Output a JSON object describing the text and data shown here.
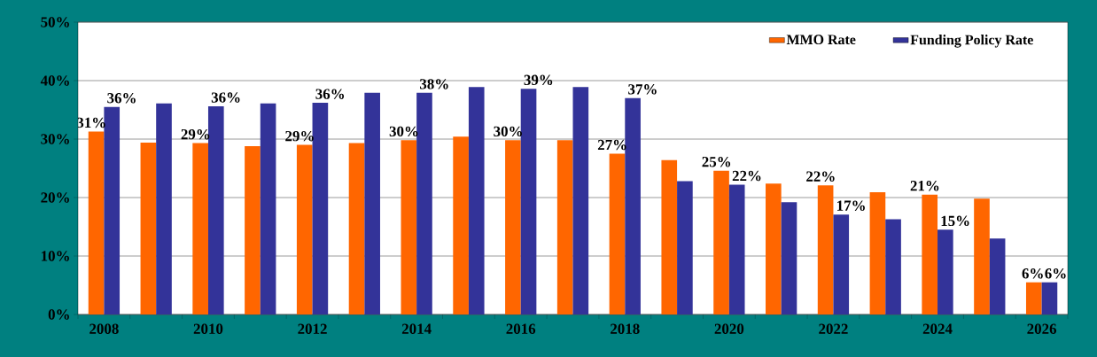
{
  "chart_data": {
    "type": "bar",
    "categories": [
      "2008",
      null,
      "2010",
      null,
      "2012",
      null,
      "2014",
      null,
      "2016",
      null,
      "2018",
      null,
      "2020",
      null,
      "2022",
      null,
      "2024",
      null,
      "2026"
    ],
    "series": [
      {
        "name": "MMO Rate",
        "color": "#ff6600",
        "values": [
          31.3,
          29.4,
          29.3,
          28.8,
          29.0,
          29.3,
          29.8,
          30.4,
          29.8,
          29.8,
          27.5,
          26.4,
          24.6,
          22.4,
          22.1,
          20.9,
          20.5,
          19.8,
          5.5
        ],
        "value_labels": [
          "31%",
          null,
          "29%",
          null,
          "29%",
          null,
          "30%",
          null,
          "30%",
          null,
          "27%",
          null,
          "25%",
          null,
          "22%",
          null,
          "21%",
          null,
          "6%"
        ]
      },
      {
        "name": "Funding Policy Rate",
        "color": "#333399",
        "values": [
          35.5,
          36.1,
          35.6,
          36.1,
          36.2,
          37.9,
          37.9,
          38.9,
          38.6,
          38.9,
          37.0,
          22.8,
          22.2,
          19.2,
          17.1,
          16.3,
          14.5,
          13.0,
          5.5
        ],
        "value_labels": [
          "36%",
          null,
          "36%",
          null,
          "36%",
          null,
          "38%",
          null,
          "39%",
          null,
          "37%",
          null,
          "22%",
          null,
          "17%",
          null,
          "15%",
          null,
          "6%"
        ]
      }
    ],
    "ylim": [
      0,
      50
    ],
    "yticks": [
      {
        "value": 0,
        "label": "0%"
      },
      {
        "value": 10,
        "label": "10%"
      },
      {
        "value": 20,
        "label": "20%"
      },
      {
        "value": 30,
        "label": "30%"
      },
      {
        "value": 40,
        "label": "40%"
      },
      {
        "value": 50,
        "label": "50%"
      }
    ],
    "grid": "y",
    "legend": "top right"
  }
}
